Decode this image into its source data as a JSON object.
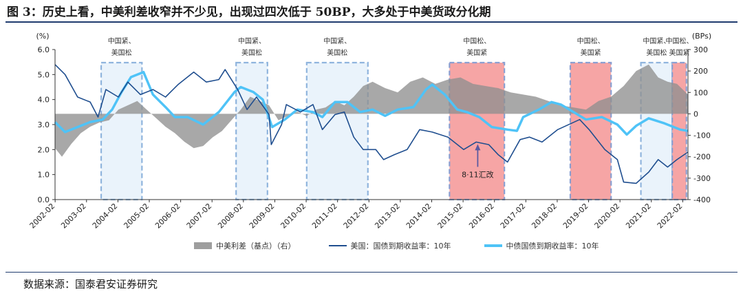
{
  "title": "图 3：历史上看，中美利差收窄并不少见，出现过四次低于 50BP，大多处于中美货政分化期",
  "source": "数据来源：国泰君安证券研究",
  "chart_data": {
    "type": "line",
    "title": "图 3：历史上看，中美利差收窄并不少见，出现过四次低于 50BP，大多处于中美货政分化期",
    "y_left_unit": "(%)",
    "y_right_unit": "(BPs)",
    "y_left_range": [
      0.0,
      6.0
    ],
    "y_right_range": [
      -400,
      300
    ],
    "y_left_ticks": [
      "0.0",
      "1.0",
      "2.0",
      "3.0",
      "4.0",
      "5.0",
      "6.0"
    ],
    "y_right_ticks": [
      "-400",
      "-300",
      "-200",
      "-100",
      "0",
      "100",
      "200",
      "300"
    ],
    "x_ticks": [
      "2002-02",
      "2003-02",
      "2004-02",
      "2005-02",
      "2006-02",
      "2007-02",
      "2008-02",
      "2009-02",
      "2010-02",
      "2011-02",
      "2012-02",
      "2013-02",
      "2014-02",
      "2015-02",
      "2016-02",
      "2017-02",
      "2018-02",
      "2019-02",
      "2020-02",
      "2021-02",
      "2022-02"
    ],
    "x_range": [
      2002.08,
      2022.25
    ],
    "legend": [
      "中美利差（基点）（右）",
      "美国：国债到期收益率：10年",
      "中债国债到期收益率：10年"
    ],
    "legend_position": "bottom",
    "series": [
      {
        "name": "中美利差（基点）（右）",
        "axis": "right",
        "kind": "area",
        "x": [
          2002.08,
          2002.3,
          2002.6,
          2002.9,
          2003.2,
          2003.5,
          2003.8,
          2004.1,
          2004.4,
          2004.7,
          2005.0,
          2005.3,
          2005.6,
          2005.9,
          2006.2,
          2006.5,
          2006.8,
          2007.1,
          2007.4,
          2007.7,
          2008.0,
          2008.3,
          2008.6,
          2008.9,
          2009.2,
          2009.5,
          2009.8,
          2010.1,
          2010.4,
          2010.7,
          2011.0,
          2011.3,
          2011.6,
          2011.9,
          2012.2,
          2012.6,
          2013.0,
          2013.4,
          2013.8,
          2014.2,
          2014.6,
          2015.0,
          2015.4,
          2015.8,
          2016.2,
          2016.6,
          2017.0,
          2017.4,
          2017.8,
          2018.2,
          2018.6,
          2019.0,
          2019.4,
          2019.8,
          2020.2,
          2020.6,
          2021.0,
          2021.3,
          2021.6,
          2021.9,
          2022.25
        ],
        "y": [
          -160,
          -200,
          -140,
          -90,
          -60,
          -40,
          -30,
          20,
          40,
          60,
          20,
          -20,
          -60,
          -90,
          -130,
          -160,
          -150,
          -110,
          -80,
          -30,
          20,
          80,
          60,
          40,
          -30,
          -10,
          10,
          -10,
          20,
          30,
          60,
          40,
          80,
          130,
          150,
          120,
          100,
          150,
          170,
          140,
          160,
          170,
          140,
          130,
          120,
          100,
          90,
          80,
          60,
          40,
          30,
          20,
          60,
          80,
          130,
          200,
          230,
          170,
          150,
          140,
          90
        ]
      },
      {
        "name": "美国：国债到期收益率：10年",
        "axis": "left",
        "kind": "line",
        "color": "#1f4e8f",
        "x": [
          2002.08,
          2002.4,
          2002.8,
          2003.2,
          2003.45,
          2003.7,
          2004.1,
          2004.4,
          2004.8,
          2005.2,
          2005.6,
          2006.0,
          2006.5,
          2006.9,
          2007.3,
          2007.5,
          2007.9,
          2008.2,
          2008.5,
          2008.9,
          2008.97,
          2009.3,
          2009.45,
          2009.9,
          2010.3,
          2010.6,
          2011.0,
          2011.3,
          2011.6,
          2011.9,
          2012.3,
          2012.55,
          2012.9,
          2013.3,
          2013.7,
          2014.1,
          2014.6,
          2015.1,
          2015.5,
          2015.9,
          2016.2,
          2016.5,
          2016.9,
          2017.2,
          2017.6,
          2018.1,
          2018.8,
          2019.1,
          2019.6,
          2020.0,
          2020.2,
          2020.6,
          2021.0,
          2021.3,
          2021.6,
          2021.9,
          2022.25
        ],
        "y": [
          5.4,
          5.0,
          4.1,
          3.9,
          3.3,
          4.4,
          4.1,
          4.7,
          4.2,
          4.4,
          4.1,
          4.6,
          5.1,
          4.7,
          4.8,
          5.2,
          4.4,
          3.6,
          4.1,
          3.4,
          2.2,
          3.0,
          3.8,
          3.5,
          3.8,
          2.8,
          3.4,
          3.5,
          2.5,
          2.0,
          2.0,
          1.6,
          1.8,
          2.0,
          2.8,
          2.7,
          2.5,
          2.0,
          2.3,
          2.2,
          1.8,
          1.5,
          2.4,
          2.5,
          2.3,
          2.8,
          3.2,
          2.8,
          2.0,
          1.6,
          0.7,
          0.65,
          1.1,
          1.6,
          1.3,
          1.6,
          1.9
        ]
      },
      {
        "name": "中债国债到期收益率：10年",
        "axis": "left",
        "kind": "line",
        "color": "#4fc3f7",
        "x": [
          2002.08,
          2002.4,
          2002.8,
          2003.2,
          2003.6,
          2003.9,
          2004.2,
          2004.5,
          2004.9,
          2005.2,
          2005.6,
          2005.9,
          2006.3,
          2006.8,
          2007.3,
          2007.8,
          2008.0,
          2008.4,
          2008.7,
          2009.0,
          2009.4,
          2009.8,
          2010.3,
          2010.6,
          2011.0,
          2011.4,
          2011.8,
          2012.2,
          2012.6,
          2013.0,
          2013.5,
          2013.9,
          2014.1,
          2014.5,
          2014.9,
          2015.2,
          2015.6,
          2016.0,
          2016.5,
          2016.8,
          2017.0,
          2017.5,
          2017.9,
          2018.2,
          2018.6,
          2019.0,
          2019.5,
          2020.0,
          2020.3,
          2020.6,
          2021.0,
          2021.5,
          2022.0,
          2022.25
        ],
        "y": [
          3.1,
          2.7,
          2.9,
          3.1,
          3.2,
          3.6,
          4.3,
          4.9,
          5.1,
          4.2,
          3.7,
          3.3,
          3.3,
          3.0,
          3.5,
          4.3,
          4.5,
          4.3,
          4.0,
          2.9,
          3.2,
          3.6,
          3.5,
          3.3,
          3.9,
          3.9,
          3.5,
          3.6,
          3.35,
          3.6,
          3.7,
          4.4,
          4.6,
          4.2,
          3.6,
          3.5,
          3.3,
          2.9,
          2.8,
          2.75,
          3.3,
          3.6,
          3.9,
          3.8,
          3.5,
          3.2,
          3.3,
          3.0,
          2.6,
          2.95,
          3.25,
          3.05,
          2.8,
          2.75
        ]
      }
    ],
    "shaded_periods": [
      {
        "label": "中国紧、美国松",
        "start": 2003.55,
        "end": 2004.85,
        "fill": "light-blue"
      },
      {
        "label": "中国紧、美国松",
        "start": 2007.85,
        "end": 2008.85,
        "fill": "light-blue"
      },
      {
        "label": "中国紧、美国松",
        "start": 2010.1,
        "end": 2012.05,
        "fill": "light-blue"
      },
      {
        "label": "中国松、美国紧",
        "start": 2014.65,
        "end": 2016.4,
        "fill": "red"
      },
      {
        "label": "中国松、美国紧",
        "start": 2018.5,
        "end": 2019.8,
        "fill": "red"
      },
      {
        "label": "中国紧、美国松",
        "start": 2020.75,
        "end": 2021.75,
        "fill": "light-blue"
      },
      {
        "label": "中国松、美国紧",
        "start": 2021.75,
        "end": 2022.2,
        "fill": "red"
      }
    ],
    "annotations": [
      {
        "text": "8·11汇改",
        "x": 2015.55,
        "y": 2.3
      }
    ]
  }
}
